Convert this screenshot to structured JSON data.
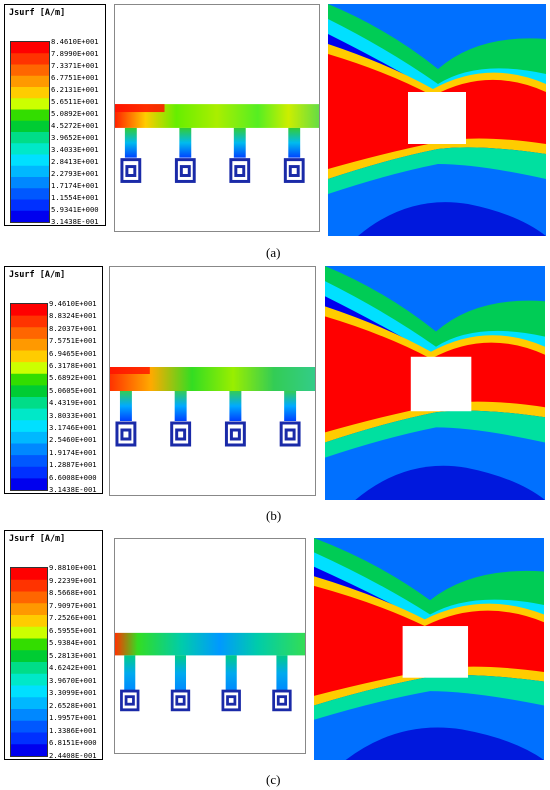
{
  "panels": [
    {
      "caption": "(a)",
      "legend": {
        "title": "Jsurf [A/m]",
        "values": [
          "8.4610E+001",
          "7.8990E+001",
          "7.3371E+001",
          "6.7751E+001",
          "6.2131E+001",
          "5.6511E+001",
          "5.0892E+001",
          "4.5272E+001",
          "3.9652E+001",
          "3.4033E+001",
          "2.8413E+001",
          "2.2793E+001",
          "1.7174E+001",
          "1.1554E+001",
          "5.9341E+000",
          "3.1438E-001"
        ]
      }
    },
    {
      "caption": "(b)",
      "legend": {
        "title": "Jsurf [A/m]",
        "values": [
          "9.4610E+001",
          "8.8324E+001",
          "8.2037E+001",
          "7.5751E+001",
          "6.9465E+001",
          "6.3178E+001",
          "5.6892E+001",
          "5.0605E+001",
          "4.4319E+001",
          "3.8033E+001",
          "3.1746E+001",
          "2.5460E+001",
          "1.9174E+001",
          "1.2887E+001",
          "6.6008E+000",
          "3.1438E-001"
        ]
      }
    },
    {
      "caption": "(c)",
      "legend": {
        "title": "Jsurf [A/m]",
        "values": [
          "9.8810E+001",
          "9.2239E+001",
          "8.5668E+001",
          "7.9097E+001",
          "7.2526E+001",
          "6.5955E+001",
          "5.9384E+001",
          "5.2813E+001",
          "4.6242E+001",
          "3.9670E+001",
          "3.3099E+001",
          "2.6528E+001",
          "1.9957E+001",
          "1.3386E+001",
          "6.8151E+000",
          "2.4408E-001"
        ]
      }
    }
  ],
  "colorscale": [
    "#ff0000",
    "#ff3300",
    "#ff6600",
    "#ff9900",
    "#ffcc00",
    "#ccff00",
    "#33dd00",
    "#00cc33",
    "#00dd88",
    "#00e8c8",
    "#00e0ff",
    "#00b8ff",
    "#0088ff",
    "#0058ff",
    "#0030ff",
    "#0000ee"
  ]
}
